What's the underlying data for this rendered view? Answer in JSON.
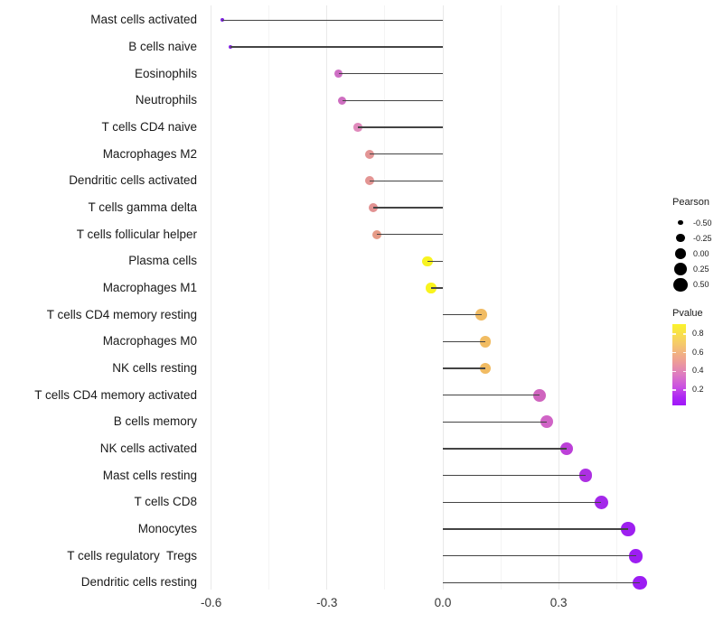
{
  "chart_data": {
    "type": "scatter",
    "variant": "lollipop",
    "orientation": "horizontal",
    "title": "",
    "xlabel": "",
    "ylabel": "",
    "grid": "on",
    "baseline": 0,
    "xlim": [
      -0.61,
      0.58
    ],
    "categories": [
      "Mast cells activated",
      "B cells naive",
      "Eosinophils",
      "Neutrophils",
      "T cells CD4 naive",
      "Macrophages M2",
      "Dendritic cells activated",
      "T cells gamma delta",
      "T cells follicular helper",
      "Plasma cells",
      "Macrophages M1",
      "T cells CD4 memory resting",
      "Macrophages M0",
      "NK cells resting",
      "T cells CD4 memory activated",
      "B cells memory",
      "NK cells activated",
      "Mast cells resting",
      "T cells CD8",
      "Monocytes",
      "T cells regulatory  Tregs",
      "Dendritic cells resting"
    ],
    "series": [
      {
        "name": "Pearson",
        "values": [
          -0.57,
          -0.55,
          -0.27,
          -0.26,
          -0.22,
          -0.19,
          -0.19,
          -0.18,
          -0.17,
          -0.04,
          -0.03,
          0.1,
          0.11,
          0.11,
          0.25,
          0.27,
          0.32,
          0.37,
          0.41,
          0.48,
          0.5,
          0.51
        ]
      }
    ],
    "point_colors": [
      "#7B22DC",
      "#8226DE",
      "#CE6EC4",
      "#CE6EC0",
      "#E08ABC",
      "#E39595",
      "#E39593",
      "#E29292",
      "#E69B87",
      "#F8F321",
      "#F9F41E",
      "#F1BC64",
      "#F1BC62",
      "#F1BB62",
      "#CF64BE",
      "#D064C6",
      "#BC40D8",
      "#AD30E2",
      "#A428EA",
      "#9E20F0",
      "#9D1EF2",
      "#9C1DF3"
    ],
    "x_ticks": {
      "values": [
        -0.6,
        -0.3,
        0.0,
        0.3
      ],
      "labels": [
        "-0.6",
        "-0.3",
        "0.0",
        "0.3"
      ]
    },
    "x_minor_ticks": [
      -0.45,
      -0.15,
      0.15,
      0.45
    ],
    "legends": {
      "size": {
        "title": "Pearson",
        "entries": [
          {
            "value": -0.5,
            "label": "-0.50"
          },
          {
            "value": -0.25,
            "label": "-0.25"
          },
          {
            "value": 0.0,
            "label": "0.00"
          },
          {
            "value": 0.25,
            "label": "0.25"
          },
          {
            "value": 0.5,
            "label": "0.50"
          }
        ]
      },
      "color": {
        "title": "Pvalue",
        "domain": [
          0.9,
          0.03
        ],
        "ticks": [
          {
            "value": 0.8,
            "label": "0.8"
          },
          {
            "value": 0.6,
            "label": "0.6"
          },
          {
            "value": 0.4,
            "label": "0.4"
          },
          {
            "value": 0.2,
            "label": "0.2"
          }
        ],
        "gradient": [
          {
            "pos": 0,
            "color": "#FAF32B"
          },
          {
            "pos": 22,
            "color": "#F6CE66"
          },
          {
            "pos": 45,
            "color": "#EE9F94"
          },
          {
            "pos": 62,
            "color": "#DE7BC1"
          },
          {
            "pos": 78,
            "color": "#C94FE3"
          },
          {
            "pos": 90,
            "color": "#AC26F4"
          },
          {
            "pos": 100,
            "color": "#A018FA"
          }
        ]
      }
    },
    "style": {
      "stem_color": "#444444",
      "legend_dot_color": "#000000",
      "grid_major_color": "#E9E9E9",
      "grid_minor_color": "#F4F4F4",
      "background": "#FFFFFF"
    }
  }
}
